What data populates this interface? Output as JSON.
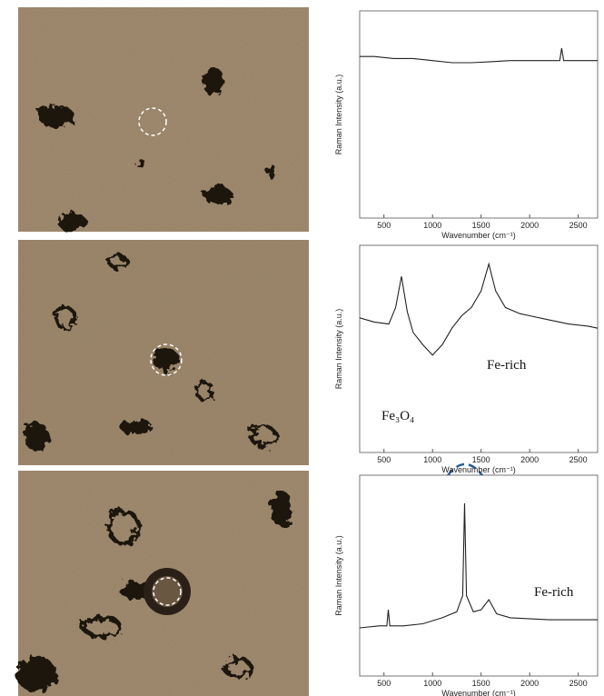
{
  "chart_data": [
    {
      "type": "line",
      "xlabel": "Wavenumber (cm⁻¹)",
      "ylabel": "Raman Intensity (a.u.)",
      "x": [
        250,
        400,
        600,
        800,
        1000,
        1200,
        1400,
        1600,
        1800,
        2000,
        2200,
        2310,
        2330,
        2350,
        2500,
        2700
      ],
      "values": [
        78,
        78,
        77,
        77,
        76,
        75,
        75,
        75.5,
        76,
        76,
        76,
        76,
        82,
        76,
        76,
        76
      ],
      "color": "#222222",
      "xlim": [
        250,
        2700
      ],
      "ylim": [
        0,
        100
      ],
      "xticks": [
        500,
        1000,
        1500,
        2000,
        2500
      ]
    },
    {
      "type": "line",
      "xlabel": "Wavenumber (cm⁻¹)",
      "ylabel": "Raman Intensity (a.u.)",
      "x": [
        250,
        400,
        550,
        620,
        680,
        740,
        800,
        900,
        1000,
        1100,
        1200,
        1300,
        1400,
        1500,
        1580,
        1650,
        1750,
        1900,
        2000,
        2200,
        2400,
        2600,
        2700
      ],
      "values": [
        65,
        63,
        62,
        70,
        85,
        68,
        58,
        52,
        47,
        52,
        60,
        66,
        70,
        78,
        91,
        78,
        70,
        67,
        66,
        64,
        62,
        61,
        60
      ],
      "color": "#222222",
      "xlim": [
        250,
        2700
      ],
      "ylim": [
        0,
        100
      ],
      "xticks": [
        500,
        1000,
        1500,
        2000,
        2500
      ],
      "annotations": [
        "Fe₃O₄",
        "Fe-rich"
      ]
    },
    {
      "type": "line",
      "xlabel": "Wavenumber (cm⁻¹)",
      "ylabel": "Raman Intensity (a.u.)",
      "x": [
        250,
        450,
        530,
        545,
        560,
        700,
        900,
        1100,
        1250,
        1310,
        1330,
        1350,
        1420,
        1500,
        1580,
        1660,
        1800,
        2200,
        2700
      ],
      "values": [
        24,
        25,
        25,
        33,
        25,
        25,
        26,
        29,
        32,
        40,
        86,
        40,
        32,
        33,
        38,
        31,
        29,
        28,
        28
      ],
      "color": "#222222",
      "xlim": [
        250,
        2700
      ],
      "ylim": [
        0,
        100
      ],
      "xticks": [
        500,
        1000,
        1500,
        2000,
        2500
      ],
      "annotations": [
        "Fe-rich"
      ]
    }
  ]
}
